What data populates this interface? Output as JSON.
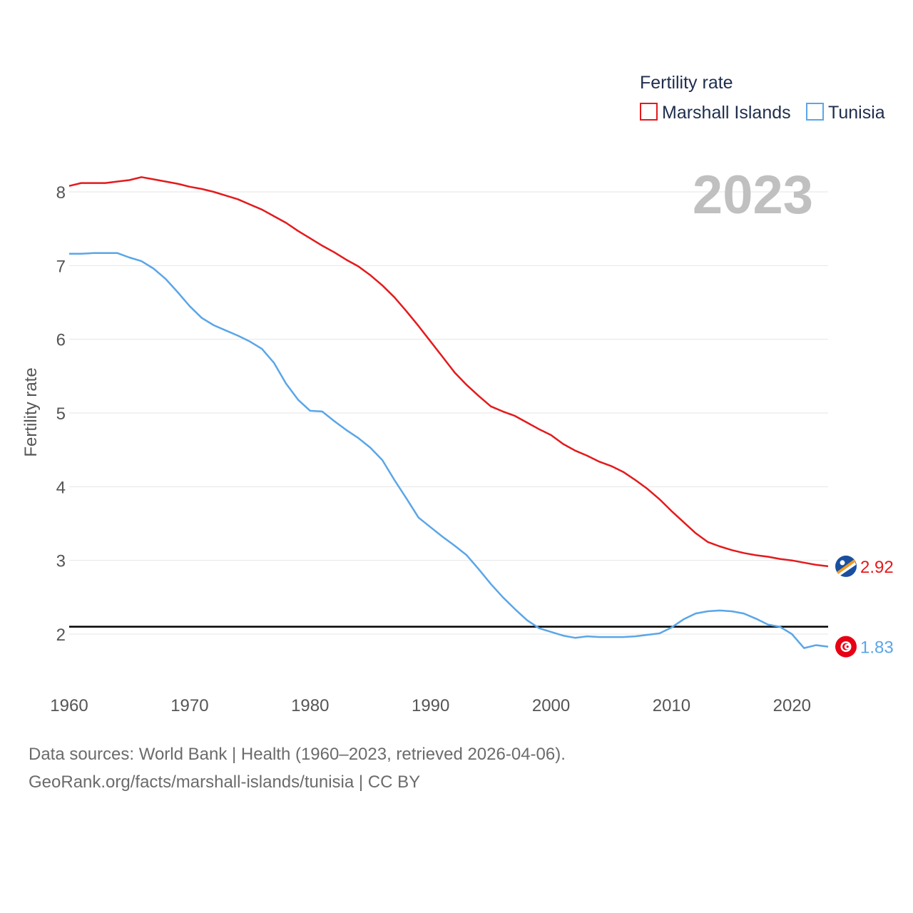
{
  "chart_data": {
    "type": "line",
    "title": "",
    "ylabel": "Fertility rate",
    "xlabel": "",
    "xlim": [
      1960,
      2023
    ],
    "ylim": [
      1.4,
      8.6
    ],
    "yticks": [
      2,
      3,
      4,
      5,
      6,
      7,
      8
    ],
    "xticks": [
      1960,
      1970,
      1980,
      1990,
      2000,
      2010,
      2020
    ],
    "year_label": "2023",
    "reference_line": 2.1,
    "legend": {
      "title": "Fertility rate",
      "position": "top-right"
    },
    "x": [
      1960,
      1961,
      1962,
      1963,
      1964,
      1965,
      1966,
      1967,
      1968,
      1969,
      1970,
      1971,
      1972,
      1973,
      1974,
      1975,
      1976,
      1977,
      1978,
      1979,
      1980,
      1981,
      1982,
      1983,
      1984,
      1985,
      1986,
      1987,
      1988,
      1989,
      1990,
      1991,
      1992,
      1993,
      1994,
      1995,
      1996,
      1997,
      1998,
      1999,
      2000,
      2001,
      2002,
      2003,
      2004,
      2005,
      2006,
      2007,
      2008,
      2009,
      2010,
      2011,
      2012,
      2013,
      2014,
      2015,
      2016,
      2017,
      2018,
      2019,
      2020,
      2021,
      2022,
      2023
    ],
    "series": [
      {
        "name": "Marshall Islands",
        "color": "#e41a1c",
        "end_label": "2.92",
        "flag": "marshall-islands-flag-icon",
        "values": [
          8.08,
          8.12,
          8.12,
          8.12,
          8.14,
          8.16,
          8.2,
          8.17,
          8.14,
          8.11,
          8.07,
          8.04,
          8.0,
          7.95,
          7.9,
          7.83,
          7.76,
          7.67,
          7.58,
          7.47,
          7.37,
          7.27,
          7.18,
          7.08,
          6.99,
          6.87,
          6.73,
          6.57,
          6.38,
          6.18,
          5.97,
          5.76,
          5.55,
          5.38,
          5.23,
          5.09,
          5.02,
          4.96,
          4.87,
          4.78,
          4.7,
          4.58,
          4.49,
          4.42,
          4.34,
          4.28,
          4.2,
          4.09,
          3.97,
          3.83,
          3.67,
          3.52,
          3.37,
          3.25,
          3.19,
          3.14,
          3.1,
          3.07,
          3.05,
          3.02,
          3.0,
          2.97,
          2.94,
          2.92
        ]
      },
      {
        "name": "Tunisia",
        "color": "#5aa6e8",
        "end_label": "1.83",
        "flag": "tunisia-flag-icon",
        "values": [
          7.16,
          7.16,
          7.17,
          7.17,
          7.17,
          7.11,
          7.06,
          6.96,
          6.82,
          6.64,
          6.45,
          6.29,
          6.19,
          6.12,
          6.05,
          5.97,
          5.87,
          5.68,
          5.4,
          5.18,
          5.03,
          5.02,
          4.89,
          4.77,
          4.66,
          4.53,
          4.36,
          4.09,
          3.84,
          3.58,
          3.45,
          3.32,
          3.2,
          3.07,
          2.88,
          2.68,
          2.5,
          2.34,
          2.19,
          2.08,
          2.03,
          1.98,
          1.95,
          1.97,
          1.96,
          1.96,
          1.96,
          1.97,
          1.99,
          2.01,
          2.09,
          2.2,
          2.28,
          2.31,
          2.32,
          2.31,
          2.28,
          2.21,
          2.13,
          2.1,
          2.0,
          1.81,
          1.85,
          1.83
        ]
      }
    ]
  },
  "footer": {
    "line1": "Data sources: World Bank | Health (1960–2023, retrieved 2026-04-06).",
    "line2": "GeoRank.org/facts/marshall-islands/tunisia | CC BY"
  }
}
